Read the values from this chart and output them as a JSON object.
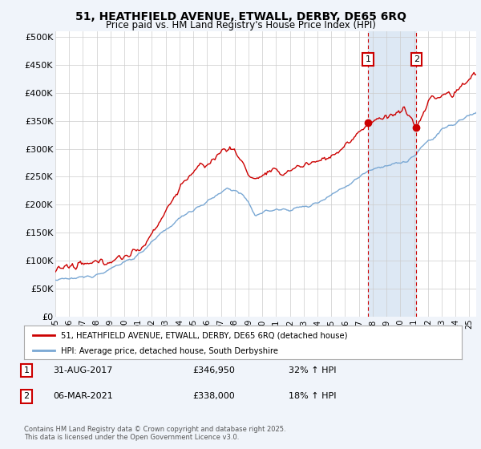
{
  "title1": "51, HEATHFIELD AVENUE, ETWALL, DERBY, DE65 6RQ",
  "title2": "Price paid vs. HM Land Registry's House Price Index (HPI)",
  "ylabel_ticks": [
    "£0",
    "£50K",
    "£100K",
    "£150K",
    "£200K",
    "£250K",
    "£300K",
    "£350K",
    "£400K",
    "£450K",
    "£500K"
  ],
  "ytick_vals": [
    0,
    50000,
    100000,
    150000,
    200000,
    250000,
    300000,
    350000,
    400000,
    450000,
    500000
  ],
  "ylim": [
    0,
    510000
  ],
  "xlim_start": 1995.0,
  "xlim_end": 2025.5,
  "xtick_years": [
    1995,
    1996,
    1997,
    1998,
    1999,
    2000,
    2001,
    2002,
    2003,
    2004,
    2005,
    2006,
    2007,
    2008,
    2009,
    2010,
    2011,
    2012,
    2013,
    2014,
    2015,
    2016,
    2017,
    2018,
    2019,
    2020,
    2021,
    2022,
    2023,
    2024,
    2025
  ],
  "property_color": "#cc0000",
  "hpi_color": "#7aa8d4",
  "sale1_x": 2017.67,
  "sale1_y": 346950,
  "sale2_x": 2021.17,
  "sale2_y": 338000,
  "vline1_x": 2017.67,
  "vline2_x": 2021.17,
  "span_color": "#dde8f4",
  "legend_label1": "51, HEATHFIELD AVENUE, ETWALL, DERBY, DE65 6RQ (detached house)",
  "legend_label2": "HPI: Average price, detached house, South Derbyshire",
  "table_row1": [
    "1",
    "31-AUG-2017",
    "£346,950",
    "32% ↑ HPI"
  ],
  "table_row2": [
    "2",
    "06-MAR-2021",
    "£338,000",
    "18% ↑ HPI"
  ],
  "footnote": "Contains HM Land Registry data © Crown copyright and database right 2025.\nThis data is licensed under the Open Government Licence v3.0.",
  "bg_color": "#f0f4fa",
  "plot_bg": "#ffffff",
  "grid_color": "#cccccc"
}
